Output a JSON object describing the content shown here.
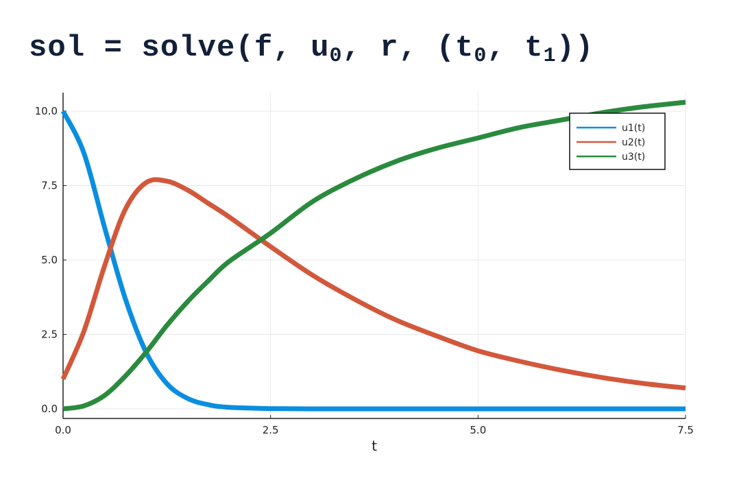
{
  "title": {
    "prefix": "sol = solve(f, u",
    "u_sub": "0",
    "middle": ", r, (t",
    "t0_sub": "0",
    "sep": ", t",
    "t1_sub": "1",
    "suffix": "))"
  },
  "chart_data": {
    "type": "line",
    "xlabel": "t",
    "ylabel": "",
    "xlim": [
      0,
      7.5
    ],
    "ylim": [
      0,
      10
    ],
    "x_ticks": [
      "0.0",
      "2.5",
      "5.0",
      "7.5"
    ],
    "y_ticks": [
      "0.0",
      "2.5",
      "5.0",
      "7.5",
      "10.0"
    ],
    "grid": true,
    "legend_position": "top-right",
    "x": [
      0,
      0.25,
      0.5,
      0.75,
      1.0,
      1.25,
      1.5,
      1.75,
      2.0,
      2.5,
      3.0,
      3.5,
      4.0,
      4.5,
      5.0,
      5.5,
      6.0,
      6.5,
      7.0,
      7.5
    ],
    "series": [
      {
        "name": "u1(t)",
        "color": "#0a8ee0",
        "values": [
          10.0,
          8.6,
          6.1,
          3.7,
          1.9,
          0.85,
          0.35,
          0.14,
          0.05,
          0.01,
          0.0,
          0.0,
          0.0,
          0.0,
          0.0,
          0.0,
          0.0,
          0.0,
          0.0,
          0.0
        ]
      },
      {
        "name": "u2(t)",
        "color": "#d2583c",
        "values": [
          1.0,
          2.6,
          4.8,
          6.7,
          7.6,
          7.65,
          7.35,
          6.9,
          6.45,
          5.45,
          4.5,
          3.7,
          3.0,
          2.45,
          1.95,
          1.6,
          1.3,
          1.05,
          0.85,
          0.7
        ]
      },
      {
        "name": "u3(t)",
        "color": "#2a8a3e",
        "values": [
          0.0,
          0.1,
          0.45,
          1.1,
          1.9,
          2.8,
          3.6,
          4.3,
          4.95,
          5.9,
          6.95,
          7.7,
          8.3,
          8.75,
          9.1,
          9.45,
          9.7,
          9.95,
          10.15,
          10.3
        ]
      }
    ]
  }
}
